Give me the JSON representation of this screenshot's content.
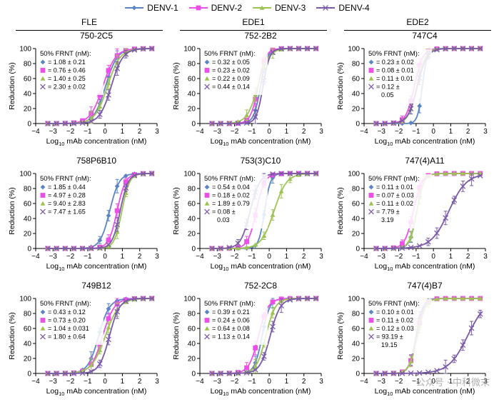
{
  "colors": {
    "DENV-1": "#5b84c4",
    "DENV-2": "#ee4ee8",
    "DENV-3": "#9dc452",
    "DENV-4": "#7a5aa8"
  },
  "markers": {
    "DENV-1": "diamond",
    "DENV-2": "square",
    "DENV-3": "triangle",
    "DENV-4": "cross"
  },
  "legend": [
    "DENV-1",
    "DENV-2",
    "DENV-3",
    "DENV-4"
  ],
  "groups": [
    {
      "title": "FLE",
      "col": 0
    },
    {
      "title": "EDE1",
      "col": 1
    },
    {
      "title": "EDE2",
      "col": 2
    }
  ],
  "axis_text": {
    "ylabel": "Reduction (%)",
    "xlabel_pre": "Log",
    "xlabel_sub": "10",
    "xlabel_post": " mAb concentration (nM)",
    "frnt_header": "50% FRNT (nM):"
  },
  "watermark": "公众号 · 中科微末",
  "chart_data": [
    {
      "type": "line",
      "title": "750-2C5",
      "xlim": [
        -4,
        3
      ],
      "ylim": [
        0,
        100
      ],
      "xticks": [
        -4,
        -3,
        -2,
        -1,
        0,
        1,
        2,
        3
      ],
      "yticks": [
        0,
        20,
        40,
        60,
        80,
        100
      ],
      "series": [
        {
          "name": "DENV-1",
          "frnt": [
            "= 1.08 ± 0.21"
          ],
          "ec50": 1.08,
          "slope": 1.3
        },
        {
          "name": "DENV-2",
          "frnt": [
            "= 0.76 ± 0.46"
          ],
          "ec50": 0.76,
          "slope": 1.2
        },
        {
          "name": "DENV-3",
          "frnt": [
            "= 1.40 ± 0.25"
          ],
          "ec50": 1.4,
          "slope": 1.2
        },
        {
          "name": "DENV-4",
          "frnt": [
            "= 2.30 ± 0.02"
          ],
          "ec50": 2.3,
          "slope": 1.3
        }
      ]
    },
    {
      "type": "line",
      "title": "752-2B2",
      "xlim": [
        -4,
        3
      ],
      "ylim": [
        0,
        100
      ],
      "xticks": [
        -4,
        -3,
        -2,
        -1,
        0,
        1,
        2,
        3
      ],
      "yticks": [
        0,
        20,
        40,
        60,
        80,
        100
      ],
      "series": [
        {
          "name": "DENV-1",
          "frnt": [
            "= 0.32 ± 0.05"
          ],
          "ec50": 0.32,
          "slope": 2.2
        },
        {
          "name": "DENV-2",
          "frnt": [
            "= 0.23 ± 0.02"
          ],
          "ec50": 0.23,
          "slope": 2.0
        },
        {
          "name": "DENV-3",
          "frnt": [
            "= 0.22 ± 0.09"
          ],
          "ec50": 0.22,
          "slope": 1.4
        },
        {
          "name": "DENV-4",
          "frnt": [
            "= 0.44 ± 0.14"
          ],
          "ec50": 0.44,
          "slope": 2.3
        }
      ]
    },
    {
      "type": "line",
      "title": "747C4",
      "xlim": [
        -4,
        3
      ],
      "ylim": [
        0,
        100
      ],
      "xticks": [
        -4,
        -3,
        -2,
        -1,
        0,
        1,
        2,
        3
      ],
      "yticks": [
        0,
        20,
        40,
        60,
        80,
        100
      ],
      "series": [
        {
          "name": "DENV-1",
          "frnt": [
            "= 0.23 ± 0.02"
          ],
          "ec50": 0.23,
          "slope": 3.2
        },
        {
          "name": "DENV-2",
          "frnt": [
            "= 0.08 ± 0.01"
          ],
          "ec50": 0.08,
          "slope": 1.8
        },
        {
          "name": "DENV-3",
          "frnt": [
            "= 0.11 ± 0.01"
          ],
          "ec50": 0.11,
          "slope": 1.8
        },
        {
          "name": "DENV-4",
          "frnt": [
            "= 0.12 ±",
            "0.05"
          ],
          "ec50": 0.12,
          "slope": 1.6
        }
      ]
    },
    {
      "type": "line",
      "title": "758P6B10",
      "xlim": [
        -4,
        3
      ],
      "ylim": [
        0,
        100
      ],
      "xticks": [
        -4,
        -3,
        -2,
        -1,
        0,
        1,
        2,
        3
      ],
      "yticks": [
        0,
        20,
        40,
        60,
        80,
        100
      ],
      "series": [
        {
          "name": "DENV-1",
          "frnt": [
            "= 1.85 ± 0.44"
          ],
          "ec50": 1.85,
          "slope": 1.6
        },
        {
          "name": "DENV-2",
          "frnt": [
            "= 4.97 ± 0.28"
          ],
          "ec50": 4.97,
          "slope": 1.8
        },
        {
          "name": "DENV-3",
          "frnt": [
            "= 9.40 ± 2.83"
          ],
          "ec50": 9.4,
          "slope": 2.0
        },
        {
          "name": "DENV-4",
          "frnt": [
            "= 7.47 ± 1.65"
          ],
          "ec50": 7.47,
          "slope": 1.9
        }
      ]
    },
    {
      "type": "line",
      "title": "753(3)C10",
      "xlim": [
        -4,
        3
      ],
      "ylim": [
        0,
        100
      ],
      "xticks": [
        -4,
        -3,
        -2,
        -1,
        0,
        1,
        2,
        3
      ],
      "yticks": [
        0,
        20,
        40,
        60,
        80,
        100
      ],
      "series": [
        {
          "name": "DENV-1",
          "frnt": [
            "= 0.54 ± 0.04"
          ],
          "ec50": 0.54,
          "slope": 2.6
        },
        {
          "name": "DENV-2",
          "frnt": [
            "= 0.18 ± 0.02"
          ],
          "ec50": 0.18,
          "slope": 1.8
        },
        {
          "name": "DENV-3",
          "frnt": [
            "= 1.89 ± 0.79"
          ],
          "ec50": 1.89,
          "slope": 1.2
        },
        {
          "name": "DENV-4",
          "frnt": [
            "= 0.08 ±",
            "0.03"
          ],
          "ec50": 0.08,
          "slope": 1.6
        }
      ]
    },
    {
      "type": "line",
      "title": "747(4)A11",
      "xlim": [
        -4,
        3
      ],
      "ylim": [
        0,
        100
      ],
      "xticks": [
        -4,
        -3,
        -2,
        -1,
        0,
        1,
        2,
        3
      ],
      "yticks": [
        0,
        20,
        40,
        60,
        80,
        100
      ],
      "series": [
        {
          "name": "DENV-1",
          "frnt": [
            "= 0.11 ± 0.01"
          ],
          "ec50": 0.11,
          "slope": 2.2
        },
        {
          "name": "DENV-2",
          "frnt": [
            "= 0.07 ± 0.03"
          ],
          "ec50": 0.07,
          "slope": 1.8
        },
        {
          "name": "DENV-3",
          "frnt": [
            "= 0.11 ± 0.02"
          ],
          "ec50": 0.11,
          "slope": 2.1
        },
        {
          "name": "DENV-4",
          "frnt": [
            "= 7.79 ±",
            "3.19"
          ],
          "ec50": 7.79,
          "slope": 0.85
        }
      ]
    },
    {
      "type": "line",
      "title": "749B12",
      "xlim": [
        -4,
        3
      ],
      "ylim": [
        0,
        100
      ],
      "xticks": [
        -4,
        -3,
        -2,
        -1,
        0,
        1,
        2,
        3
      ],
      "yticks": [
        0,
        20,
        40,
        60,
        80,
        100
      ],
      "series": [
        {
          "name": "DENV-1",
          "frnt": [
            "= 0.43 ± 0.12"
          ],
          "ec50": 0.43,
          "slope": 1.4
        },
        {
          "name": "DENV-2",
          "frnt": [
            "= 0.73 ± 0.20"
          ],
          "ec50": 0.73,
          "slope": 1.3
        },
        {
          "name": "DENV-3",
          "frnt": [
            "= 1.04 ± 0.031"
          ],
          "ec50": 1.04,
          "slope": 1.1
        },
        {
          "name": "DENV-4",
          "frnt": [
            "= 1.80 ± 0.64"
          ],
          "ec50": 1.8,
          "slope": 1.5
        }
      ]
    },
    {
      "type": "line",
      "title": "752-2C8",
      "xlim": [
        -4,
        3
      ],
      "ylim": [
        0,
        100
      ],
      "xticks": [
        -4,
        -3,
        -2,
        -1,
        0,
        1,
        2,
        3
      ],
      "yticks": [
        0,
        20,
        40,
        60,
        80,
        100
      ],
      "series": [
        {
          "name": "DENV-1",
          "frnt": [
            "= 0.39 ± 0.21"
          ],
          "ec50": 0.39,
          "slope": 2.0
        },
        {
          "name": "DENV-2",
          "frnt": [
            "= 0.24 ± 0.06"
          ],
          "ec50": 0.24,
          "slope": 1.6
        },
        {
          "name": "DENV-3",
          "frnt": [
            "= 0.64 ± 0.08"
          ],
          "ec50": 0.64,
          "slope": 1.6
        },
        {
          "name": "DENV-4",
          "frnt": [
            "= 1.13 ± 0.14"
          ],
          "ec50": 1.13,
          "slope": 1.5
        }
      ]
    },
    {
      "type": "line",
      "title": "747(4)B7",
      "xlim": [
        -4,
        3
      ],
      "ylim": [
        0,
        100
      ],
      "xticks": [
        -4,
        -3,
        -2,
        -1,
        0,
        1,
        2,
        3
      ],
      "yticks": [
        0,
        20,
        40,
        60,
        80,
        100
      ],
      "series": [
        {
          "name": "DENV-1",
          "frnt": [
            "= 0.10 ± 0.01"
          ],
          "ec50": 0.1,
          "slope": 2.2
        },
        {
          "name": "DENV-2",
          "frnt": [
            "= 0.11 ± 0.02"
          ],
          "ec50": 0.11,
          "slope": 2.0
        },
        {
          "name": "DENV-3",
          "frnt": [
            "= 0.12 ± 0.03"
          ],
          "ec50": 0.12,
          "slope": 1.9
        },
        {
          "name": "DENV-4",
          "frnt": [
            "= 93.19 ±",
            "19.15"
          ],
          "ec50": 93.19,
          "slope": 0.8
        }
      ]
    }
  ]
}
